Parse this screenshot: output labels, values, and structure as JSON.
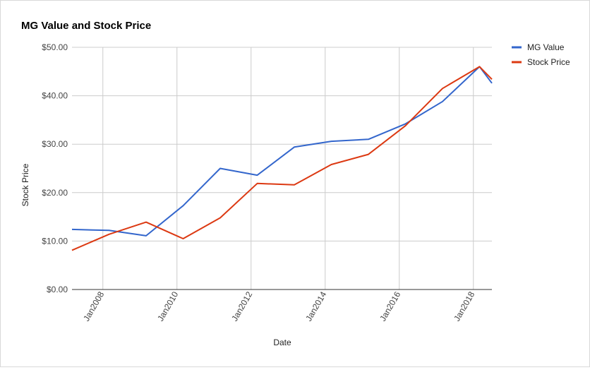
{
  "chart_data": {
    "type": "line",
    "title": "MG Value and Stock Price",
    "xlabel": "Date",
    "ylabel": "Stock Price",
    "x_tick_labels": [
      "Jan2008",
      "Jan2010",
      "Jan2012",
      "Jan2014",
      "Jan2016",
      "Jan2018"
    ],
    "x_tick_years": [
      2008,
      2010,
      2012,
      2014,
      2016,
      2018
    ],
    "xlim": [
      "2007-03",
      "2018-07"
    ],
    "y_tick_labels": [
      "$0.00",
      "$10.00",
      "$20.00",
      "$30.00",
      "$40.00",
      "$50.00"
    ],
    "y_tick_values": [
      0,
      10,
      20,
      30,
      40,
      50
    ],
    "ylim": [
      0,
      50
    ],
    "grid": true,
    "legend_position": "top-right",
    "series": [
      {
        "name": "MG Value",
        "color": "#3366cc",
        "points": [
          {
            "x": "2007-03",
            "y": 12.4
          },
          {
            "x": "2008-03",
            "y": 12.2
          },
          {
            "x": "2009-03",
            "y": 11.1
          },
          {
            "x": "2010-03",
            "y": 17.3
          },
          {
            "x": "2011-03",
            "y": 25.0
          },
          {
            "x": "2012-03",
            "y": 23.6
          },
          {
            "x": "2013-03",
            "y": 29.4
          },
          {
            "x": "2014-03",
            "y": 30.6
          },
          {
            "x": "2015-03",
            "y": 31.0
          },
          {
            "x": "2016-03",
            "y": 34.2
          },
          {
            "x": "2017-03",
            "y": 38.8
          },
          {
            "x": "2018-03",
            "y": 46.0
          },
          {
            "x": "2018-07",
            "y": 42.6
          }
        ]
      },
      {
        "name": "Stock Price",
        "color": "#dc3912",
        "points": [
          {
            "x": "2007-03",
            "y": 8.1
          },
          {
            "x": "2008-03",
            "y": 11.4
          },
          {
            "x": "2009-03",
            "y": 13.9
          },
          {
            "x": "2010-03",
            "y": 10.5
          },
          {
            "x": "2011-03",
            "y": 14.8
          },
          {
            "x": "2012-03",
            "y": 21.9
          },
          {
            "x": "2013-03",
            "y": 21.6
          },
          {
            "x": "2014-03",
            "y": 25.8
          },
          {
            "x": "2015-03",
            "y": 27.9
          },
          {
            "x": "2016-03",
            "y": 33.8
          },
          {
            "x": "2017-03",
            "y": 41.5
          },
          {
            "x": "2018-03",
            "y": 46.0
          },
          {
            "x": "2018-07",
            "y": 43.4
          }
        ]
      }
    ]
  }
}
